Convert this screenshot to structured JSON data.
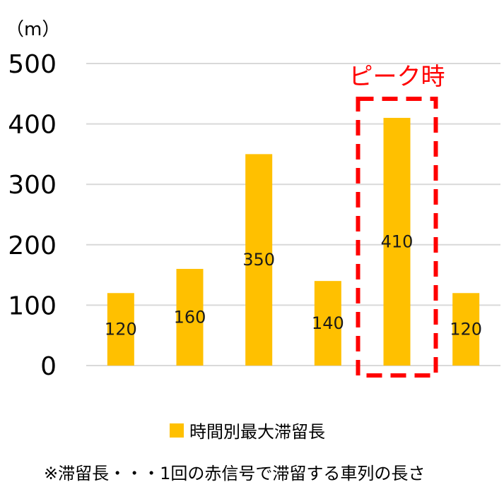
{
  "chart_data": {
    "type": "bar",
    "unit_label": "（m）",
    "categories": [
      "",
      "",
      "",
      "",
      "",
      ""
    ],
    "series": [
      {
        "name": "時間別最大滞留長",
        "values": [
          120,
          160,
          350,
          140,
          410,
          120
        ]
      }
    ],
    "data_labels": [
      "120",
      "160",
      "350",
      "140",
      "410",
      "120"
    ],
    "yticks": [
      "0",
      "100",
      "200",
      "300",
      "400",
      "500"
    ],
    "ylim": [
      0,
      500
    ],
    "grid": true,
    "legend": "bottom",
    "bar_color": "#ffc000",
    "grid_color": "#d9d9d9",
    "annotation": {
      "text": "ピーク時",
      "bar_index": 4,
      "color": "#ff0000"
    }
  },
  "footnote": "※滞留長・・・1回の赤信号で滞留する車列の長さ"
}
